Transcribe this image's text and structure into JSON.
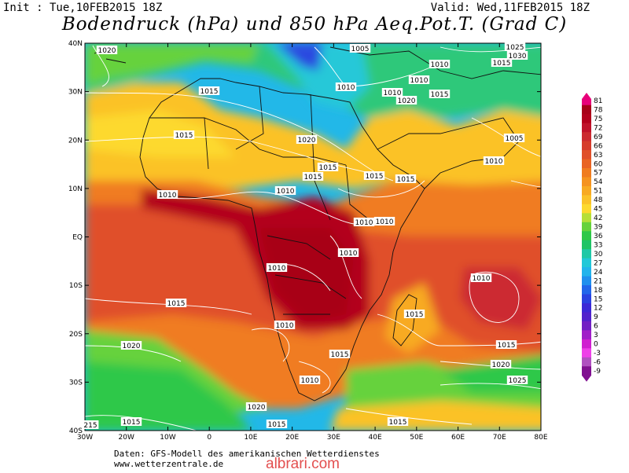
{
  "header": {
    "init": "Init : Tue,10FEB2015 18Z",
    "valid": "Valid: Wed,11FEB2015 18Z",
    "title": "Bodendruck (hPa) und 850 hPa Aeq.Pot.T. (Grad C)"
  },
  "axes": {
    "lat_labels": [
      "40N",
      "30N",
      "20N",
      "10N",
      "EQ",
      "10S",
      "20S",
      "30S",
      "40S"
    ],
    "lon_labels": [
      "30W",
      "20W",
      "10W",
      "0",
      "10E",
      "20E",
      "30E",
      "40E",
      "50E",
      "60E",
      "70E",
      "80E"
    ]
  },
  "isobar_labels": [
    "1020",
    "1005",
    "1015",
    "1025",
    "1030",
    "1010",
    "1015",
    "1010",
    "1010",
    "1020",
    "1015",
    "1010",
    "1020",
    "1015",
    "1015",
    "1015",
    "1015",
    "1010",
    "1005",
    "1010",
    "1015",
    "1010",
    "1010",
    "1010",
    "1010",
    "1010",
    "1010",
    "1015",
    "1015",
    "1010",
    "1015",
    "1020",
    "1015",
    "1020",
    "1010",
    "1025",
    "1020",
    "1015",
    "1015",
    "1015",
    "215"
  ],
  "colorbar": {
    "ticks": [
      "81",
      "78",
      "75",
      "72",
      "69",
      "66",
      "63",
      "60",
      "57",
      "54",
      "51",
      "48",
      "45",
      "42",
      "39",
      "36",
      "33",
      "30",
      "27",
      "24",
      "21",
      "18",
      "15",
      "12",
      "9",
      "6",
      "3",
      "0",
      "-3",
      "-6",
      "-9"
    ],
    "colors": [
      "#e8007a",
      "#a80018",
      "#b3001c",
      "#c0122a",
      "#cc2a30",
      "#d63c2c",
      "#e0502a",
      "#e96424",
      "#f07c20",
      "#f59320",
      "#f8aa22",
      "#fbc228",
      "#fdd92e",
      "#b6df38",
      "#66d23c",
      "#2ec848",
      "#20c466",
      "#20c8a6",
      "#22c8d8",
      "#22b4ec",
      "#2090ee",
      "#2266ea",
      "#2a42e0",
      "#3c28d6",
      "#5222cc",
      "#7220c4",
      "#a01ec8",
      "#d020d0",
      "#ee40e8",
      "#b050c0",
      "#801090"
    ]
  },
  "footer": {
    "line1": "Daten: GFS-Modell des amerikanischen Wetterdienstes",
    "line2": "www.wetterzentrale.de"
  },
  "watermark": "albrari.com"
}
